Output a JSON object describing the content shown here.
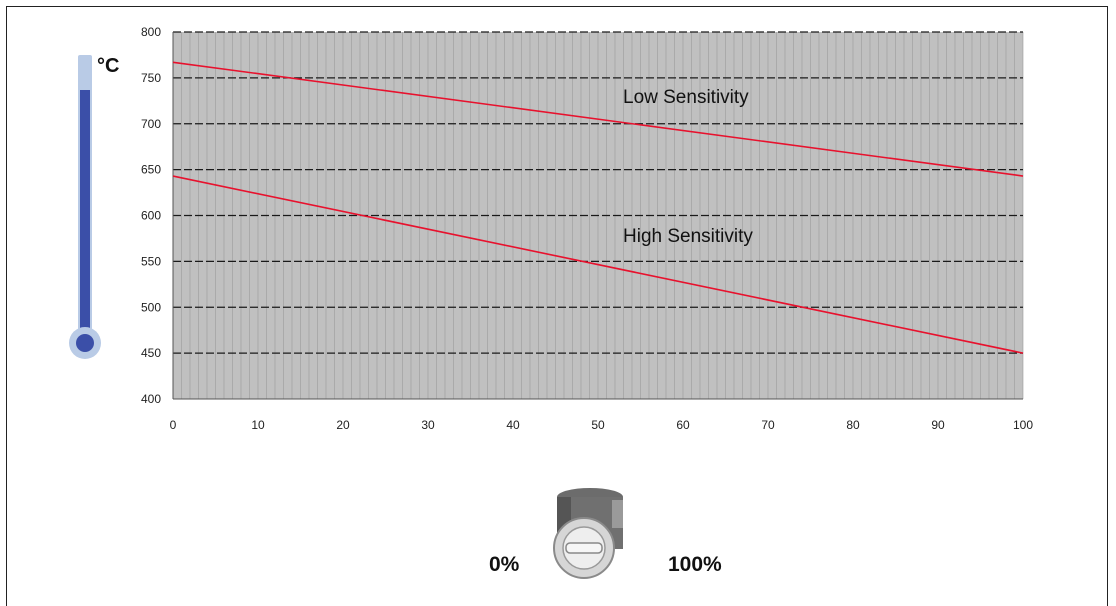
{
  "chart_data": {
    "type": "line",
    "unit": "°C",
    "x": [
      0,
      100
    ],
    "xlim": [
      0,
      100
    ],
    "ylim": [
      400,
      800
    ],
    "xticks": [
      0,
      10,
      20,
      30,
      40,
      50,
      60,
      70,
      80,
      90,
      100
    ],
    "yticks": [
      400,
      450,
      500,
      550,
      600,
      650,
      700,
      750,
      800
    ],
    "grid": true,
    "series": [
      {
        "name": "Low Sensitivity",
        "values": [
          767,
          643
        ],
        "color": "#e8112d"
      },
      {
        "name": "High Sensitivity",
        "values": [
          643,
          450
        ],
        "color": "#e8112d"
      }
    ],
    "plot_background": "#c0c0c0"
  },
  "dial": {
    "min_label": "0%",
    "max_label": "100%"
  }
}
